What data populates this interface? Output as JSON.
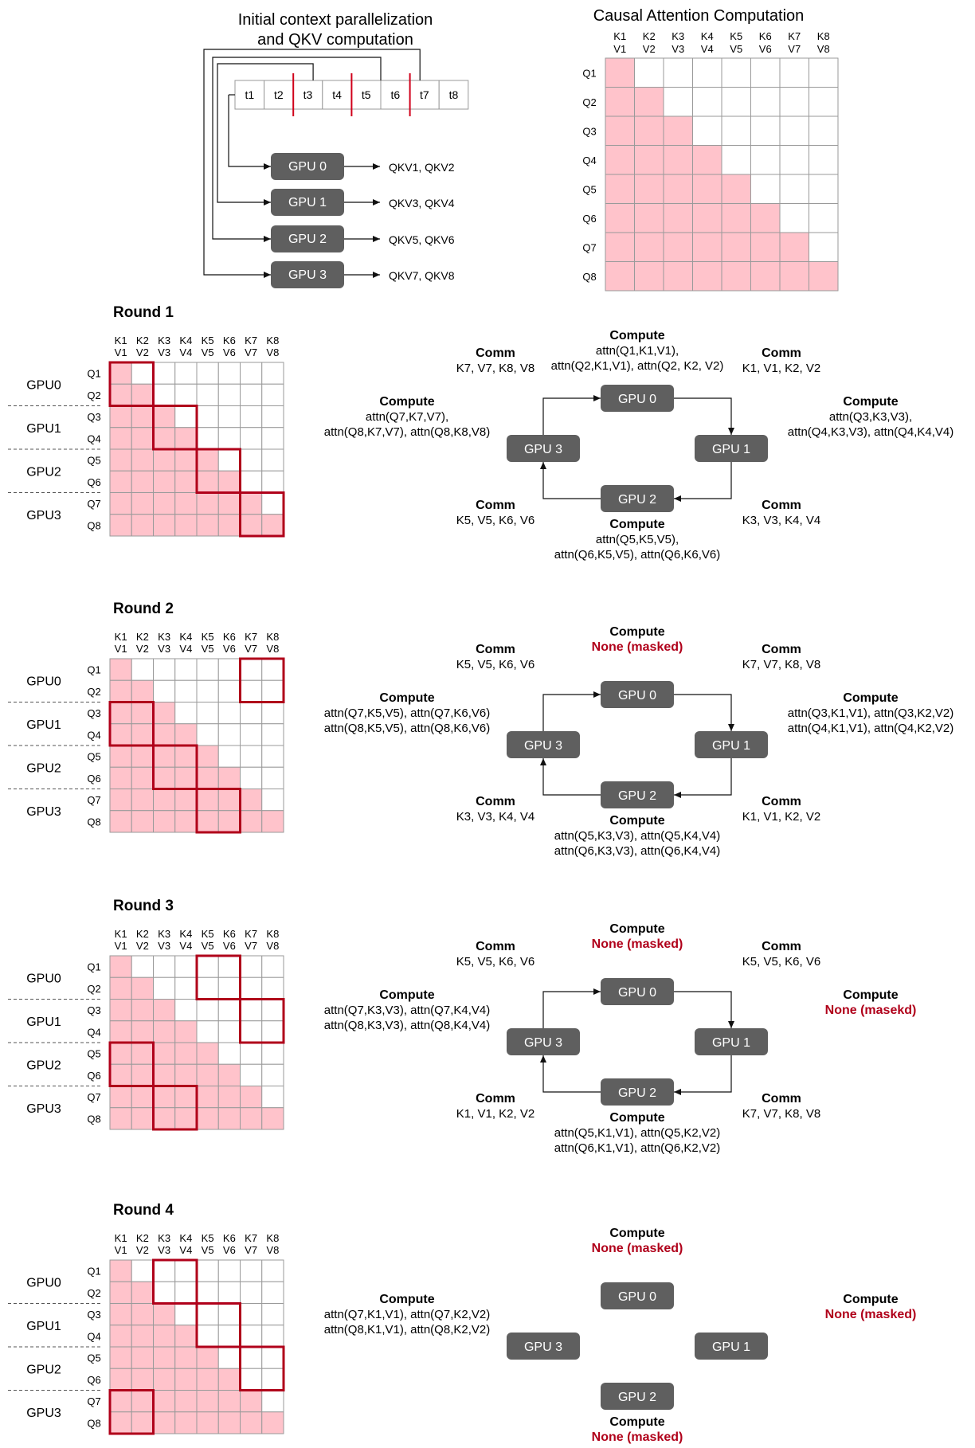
{
  "init": {
    "title_line1": "Initial context parallelization",
    "title_line2": "and QKV computation",
    "tokens": [
      "t1",
      "t2",
      "t3",
      "t4",
      "t5",
      "t6",
      "t7",
      "t8"
    ],
    "gpus": [
      "GPU 0",
      "GPU 1",
      "GPU 2",
      "GPU 3"
    ],
    "outputs": [
      "QKV1, QKV2",
      "QKV3, QKV4",
      "QKV5, QKV6",
      "QKV7, QKV8"
    ]
  },
  "causal": {
    "title": "Causal Attention Computation",
    "k_labels": [
      "K1",
      "K2",
      "K3",
      "K4",
      "K5",
      "K6",
      "K7",
      "K8"
    ],
    "v_labels": [
      "V1",
      "V2",
      "V3",
      "V4",
      "V5",
      "V6",
      "V7",
      "V8"
    ],
    "q_labels": [
      "Q1",
      "Q2",
      "Q3",
      "Q4",
      "Q5",
      "Q6",
      "Q7",
      "Q8"
    ]
  },
  "grid_labels": {
    "gpu_rows": [
      "GPU0",
      "GPU1",
      "GPU2",
      "GPU3"
    ]
  },
  "colors": {
    "filled": "#ffc3cb",
    "highlight": "#b0001a",
    "gpu_box": "#5f5f5f",
    "red_text": "#b0001a"
  },
  "rounds": [
    {
      "title": "Round 1",
      "highlight_blocks": [
        [
          0,
          0
        ],
        [
          1,
          1
        ],
        [
          2,
          2
        ],
        [
          3,
          3
        ]
      ],
      "top": {
        "heading": "Compute",
        "lines": [
          "attn(Q1,K1,V1),",
          "attn(Q2,K1,V1), attn(Q2, K2, V2)"
        ],
        "red": false
      },
      "right": {
        "heading": "Compute",
        "lines": [
          "attn(Q3,K3,V3),",
          "attn(Q4,K3,V3), attn(Q4,K4,V4)"
        ],
        "red": false
      },
      "bottom": {
        "heading": "Compute",
        "lines": [
          "attn(Q5,K5,V5),",
          "attn(Q6,K5,V5), attn(Q6,K6,V6)"
        ],
        "red": false
      },
      "left": {
        "heading": "Compute",
        "lines": [
          "attn(Q7,K7,V7),",
          "attn(Q8,K7,V7), attn(Q8,K8,V8)"
        ],
        "red": false
      },
      "comm_tl": {
        "heading": "Comm",
        "line": "K7, V7, K8, V8"
      },
      "comm_tr": {
        "heading": "Comm",
        "line": "K1, V1, K2, V2"
      },
      "comm_br": {
        "heading": "Comm",
        "line": "K3, V3, K4, V4"
      },
      "comm_bl": {
        "heading": "Comm",
        "line": "K5, V5, K6, V6"
      }
    },
    {
      "title": "Round 2",
      "highlight_blocks": [
        [
          0,
          3
        ],
        [
          1,
          0
        ],
        [
          2,
          1
        ],
        [
          3,
          2
        ]
      ],
      "top": {
        "heading": "Compute",
        "lines": [
          "None (masked)"
        ],
        "red": true
      },
      "right": {
        "heading": "Compute",
        "lines": [
          "attn(Q3,K1,V1), attn(Q3,K2,V2)",
          "attn(Q4,K1,V1), attn(Q4,K2,V2)"
        ],
        "red": false
      },
      "bottom": {
        "heading": "Compute",
        "lines": [
          "attn(Q5,K3,V3), attn(Q5,K4,V4)",
          "attn(Q6,K3,V3), attn(Q6,K4,V4)"
        ],
        "red": false
      },
      "left": {
        "heading": "Compute",
        "lines": [
          "attn(Q7,K5,V5), attn(Q7,K6,V6)",
          "attn(Q8,K5,V5), attn(Q8,K6,V6)"
        ],
        "red": false
      },
      "comm_tl": {
        "heading": "Comm",
        "line": "K5, V5, K6, V6"
      },
      "comm_tr": {
        "heading": "Comm",
        "line": "K7, V7, K8, V8"
      },
      "comm_br": {
        "heading": "Comm",
        "line": "K1, V1, K2, V2"
      },
      "comm_bl": {
        "heading": "Comm",
        "line": "K3, V3, K4, V4"
      }
    },
    {
      "title": "Round 3",
      "highlight_blocks": [
        [
          0,
          2
        ],
        [
          1,
          3
        ],
        [
          2,
          0
        ],
        [
          3,
          1
        ]
      ],
      "top": {
        "heading": "Compute",
        "lines": [
          "None (masked)"
        ],
        "red": true
      },
      "right": {
        "heading": "Compute",
        "lines": [
          "None (masekd)"
        ],
        "red": true
      },
      "bottom": {
        "heading": "Compute",
        "lines": [
          "attn(Q5,K1,V1), attn(Q5,K2,V2)",
          "attn(Q6,K1,V1), attn(Q6,K2,V2)"
        ],
        "red": false
      },
      "left": {
        "heading": "Compute",
        "lines": [
          "attn(Q7,K3,V3), attn(Q7,K4,V4)",
          "attn(Q8,K3,V3), attn(Q8,K4,V4)"
        ],
        "red": false
      },
      "comm_tl": {
        "heading": "Comm",
        "line": "K5, V5, K6, V6"
      },
      "comm_tr": {
        "heading": "Comm",
        "line": "K5, V5, K6, V6"
      },
      "comm_br": {
        "heading": "Comm",
        "line": "K7, V7, K8, V8"
      },
      "comm_bl": {
        "heading": "Comm",
        "line": "K1, V1, K2, V2"
      }
    },
    {
      "title": "Round 4",
      "highlight_blocks": [
        [
          0,
          1
        ],
        [
          1,
          2
        ],
        [
          2,
          3
        ],
        [
          3,
          0
        ]
      ],
      "top": {
        "heading": "Compute",
        "lines": [
          "None (masked)"
        ],
        "red": true
      },
      "right": {
        "heading": "Compute",
        "lines": [
          "None (masked)"
        ],
        "red": true
      },
      "bottom": {
        "heading": "Compute",
        "lines": [
          "None (masked)"
        ],
        "red": true
      },
      "left": {
        "heading": "Compute",
        "lines": [
          "attn(Q7,K1,V1), attn(Q7,K2,V2)",
          "attn(Q8,K1,V1), attn(Q8,K2,V2)"
        ],
        "red": false
      },
      "comm_tl": null,
      "comm_tr": null,
      "comm_br": null,
      "comm_bl": null
    }
  ]
}
